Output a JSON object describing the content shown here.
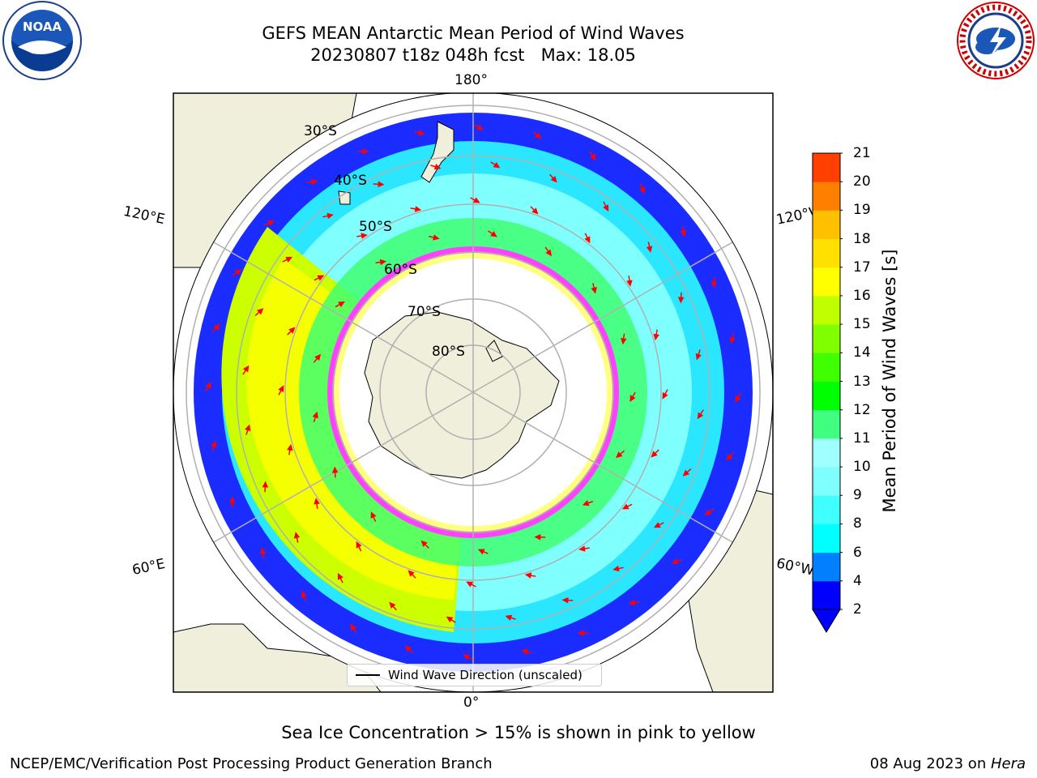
{
  "header": {
    "title_line1": "GEFS MEAN Antarctic Mean Period of Wind Waves",
    "title_line2": "20230807 t18z 048h fcst   Max: 18.05"
  },
  "logos": {
    "left": {
      "icon": "noaa-logo",
      "text": "NOAA"
    },
    "right": {
      "icon": "national-weather-service-logo"
    }
  },
  "map": {
    "projection": "south-polar-stereographic",
    "longitude_labels": {
      "top": "180°",
      "bottom": "0°",
      "left_upper": "120°E",
      "left_lower": "60°E",
      "right_upper": "120°W",
      "right_lower": "60°W"
    },
    "latitude_labels": [
      "30°S",
      "40°S",
      "50°S",
      "60°S",
      "70°S",
      "80°S"
    ],
    "legend": {
      "label": "Wind Wave Direction (unscaled)"
    },
    "colors": {
      "land": "#efefdb",
      "ocean_low": "#0000ff",
      "sea_ice": "#ff40ff",
      "arrows": "#ff0000",
      "grid": "#b0b0b0"
    }
  },
  "colorbar": {
    "title": "Mean Period of Wind Waves [s]",
    "ticks": [
      "2",
      "4",
      "6",
      "8",
      "9",
      "10",
      "11",
      "12",
      "13",
      "14",
      "15",
      "16",
      "17",
      "18",
      "19",
      "20",
      "21"
    ],
    "colors": [
      "#0000ff",
      "#0080ff",
      "#00ffff",
      "#40ffff",
      "#80ffff",
      "#a0ffff",
      "#40ff80",
      "#00ff00",
      "#40ff00",
      "#80ff00",
      "#c0ff00",
      "#ffff00",
      "#ffe000",
      "#ffc000",
      "#ff8000",
      "#ff4000",
      "#ff0000"
    ]
  },
  "caption": "Sea Ice Concentration > 15% is shown in pink to yellow",
  "footer": {
    "left": "NCEP/EMC/Verification Post Processing Product Generation Branch",
    "right_prefix": "08 Aug 2023 on ",
    "right_italic": "Hera"
  }
}
